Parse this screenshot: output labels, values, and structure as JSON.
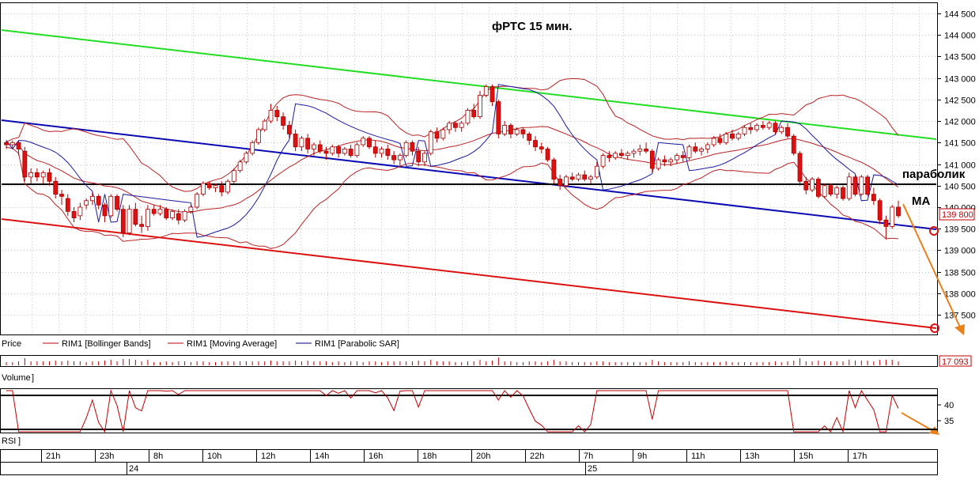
{
  "chart_data": {
    "type": "candlestick",
    "title": "фРТС  15 мин.",
    "annotations": {
      "parabolic_label": "параболик",
      "ma_label": "MA"
    },
    "price_axis": {
      "ylim": [
        137000,
        144700
      ],
      "ticks": [
        144500,
        144000,
        143500,
        143000,
        142500,
        142000,
        141500,
        141000,
        140500,
        140000,
        139500,
        139000,
        138500,
        138000,
        137500
      ],
      "tick_labels": [
        "144 500",
        "144 000",
        "143 500",
        "143 000",
        "142 500",
        "142 000",
        "141 500",
        "141 000",
        "140 500",
        "140 000",
        "139 500",
        "139 000",
        "138 500",
        "138 000",
        "137 500"
      ],
      "last_price": 139800,
      "last_price_label": "139 800"
    },
    "legend": [
      {
        "label": "Price",
        "color": "#000000"
      },
      {
        "label": "RIM1 [Bollinger Bands]",
        "color": "#c00000"
      },
      {
        "label": "RIM1 [Moving Average]",
        "color": "#c00000"
      },
      {
        "label": "RIM1 [Parabolic SAR]",
        "color": "#000080"
      }
    ],
    "time_axis": {
      "hours": [
        "21h",
        "23h",
        "8h",
        "10h",
        "12h",
        "14h",
        "16h",
        "18h",
        "20h",
        "22h",
        "7h",
        "9h",
        "11h",
        "13h",
        "15h",
        "17h"
      ],
      "dates": [
        "24",
        "25"
      ]
    },
    "volume": {
      "label": "Volume",
      "last_value": 17093,
      "last_value_label": "17 093"
    },
    "rsi": {
      "label": "RSI",
      "ticks": [
        40,
        35
      ],
      "tick_labels": [
        "40",
        "35"
      ]
    },
    "candles": [
      {
        "o": 141500,
        "h": 141550,
        "l": 141350,
        "c": 141450
      },
      {
        "o": 141450,
        "h": 141550,
        "l": 141350,
        "c": 141500
      },
      {
        "o": 141500,
        "h": 141550,
        "l": 141200,
        "c": 141350
      },
      {
        "o": 141300,
        "h": 141400,
        "l": 140600,
        "c": 140700
      },
      {
        "o": 140700,
        "h": 140900,
        "l": 140550,
        "c": 140800
      },
      {
        "o": 140800,
        "h": 140900,
        "l": 140600,
        "c": 140700
      },
      {
        "o": 140700,
        "h": 140850,
        "l": 140550,
        "c": 140800
      },
      {
        "o": 140800,
        "h": 140900,
        "l": 140500,
        "c": 140600
      },
      {
        "o": 140600,
        "h": 140700,
        "l": 140200,
        "c": 140300
      },
      {
        "o": 140300,
        "h": 140400,
        "l": 140050,
        "c": 140250
      },
      {
        "o": 140200,
        "h": 140300,
        "l": 139800,
        "c": 139900
      },
      {
        "o": 139900,
        "h": 140000,
        "l": 139650,
        "c": 139750
      },
      {
        "o": 139800,
        "h": 140100,
        "l": 139700,
        "c": 140000
      },
      {
        "o": 140050,
        "h": 140200,
        "l": 139950,
        "c": 140150
      },
      {
        "o": 140150,
        "h": 140350,
        "l": 140050,
        "c": 140250
      },
      {
        "o": 140250,
        "h": 140300,
        "l": 139950,
        "c": 140050
      },
      {
        "o": 140050,
        "h": 140100,
        "l": 139650,
        "c": 139800
      },
      {
        "o": 139800,
        "h": 140300,
        "l": 139750,
        "c": 140250
      },
      {
        "o": 140250,
        "h": 140300,
        "l": 139900,
        "c": 139950
      },
      {
        "o": 139950,
        "h": 140050,
        "l": 139300,
        "c": 139400
      },
      {
        "o": 139400,
        "h": 140050,
        "l": 139350,
        "c": 139950
      },
      {
        "o": 139950,
        "h": 140100,
        "l": 139550,
        "c": 139600
      },
      {
        "o": 139600,
        "h": 139800,
        "l": 139400,
        "c": 139550
      },
      {
        "o": 139550,
        "h": 140050,
        "l": 139450,
        "c": 139950
      },
      {
        "o": 139950,
        "h": 140050,
        "l": 139800,
        "c": 139850
      },
      {
        "o": 139850,
        "h": 140050,
        "l": 139800,
        "c": 139950
      },
      {
        "o": 139950,
        "h": 140000,
        "l": 139700,
        "c": 139750
      },
      {
        "o": 139750,
        "h": 139950,
        "l": 139700,
        "c": 139900
      },
      {
        "o": 139850,
        "h": 139950,
        "l": 139600,
        "c": 139700
      },
      {
        "o": 139700,
        "h": 139950,
        "l": 139650,
        "c": 139900
      },
      {
        "o": 139900,
        "h": 140050,
        "l": 139850,
        "c": 140000
      },
      {
        "o": 140000,
        "h": 140350,
        "l": 139950,
        "c": 140300
      },
      {
        "o": 140300,
        "h": 140600,
        "l": 140250,
        "c": 140550
      },
      {
        "o": 140550,
        "h": 140600,
        "l": 140400,
        "c": 140450
      },
      {
        "o": 140450,
        "h": 140550,
        "l": 140350,
        "c": 140500
      },
      {
        "o": 140500,
        "h": 140600,
        "l": 140250,
        "c": 140350
      },
      {
        "o": 140350,
        "h": 140650,
        "l": 140300,
        "c": 140600
      },
      {
        "o": 140600,
        "h": 140900,
        "l": 140550,
        "c": 140850
      },
      {
        "o": 140850,
        "h": 141100,
        "l": 140800,
        "c": 141050
      },
      {
        "o": 141050,
        "h": 141300,
        "l": 141000,
        "c": 141250
      },
      {
        "o": 141250,
        "h": 141550,
        "l": 141200,
        "c": 141500
      },
      {
        "o": 141500,
        "h": 141850,
        "l": 141450,
        "c": 141800
      },
      {
        "o": 141800,
        "h": 142050,
        "l": 141750,
        "c": 142000
      },
      {
        "o": 142000,
        "h": 142400,
        "l": 141950,
        "c": 142250
      },
      {
        "o": 142250,
        "h": 142350,
        "l": 142000,
        "c": 142100
      },
      {
        "o": 142100,
        "h": 142200,
        "l": 141800,
        "c": 141900
      },
      {
        "o": 141900,
        "h": 142000,
        "l": 141600,
        "c": 141700
      },
      {
        "o": 141700,
        "h": 141800,
        "l": 141300,
        "c": 141400
      },
      {
        "o": 141400,
        "h": 141650,
        "l": 141300,
        "c": 141600
      },
      {
        "o": 141600,
        "h": 141700,
        "l": 141250,
        "c": 141350
      },
      {
        "o": 141350,
        "h": 141500,
        "l": 141200,
        "c": 141450
      },
      {
        "o": 141450,
        "h": 141550,
        "l": 141250,
        "c": 141300
      },
      {
        "o": 141300,
        "h": 141400,
        "l": 141100,
        "c": 141250
      },
      {
        "o": 141250,
        "h": 141450,
        "l": 141200,
        "c": 141400
      },
      {
        "o": 141400,
        "h": 141450,
        "l": 141150,
        "c": 141250
      },
      {
        "o": 141250,
        "h": 141400,
        "l": 141200,
        "c": 141350
      },
      {
        "o": 141350,
        "h": 141450,
        "l": 141150,
        "c": 141200
      },
      {
        "o": 141200,
        "h": 141500,
        "l": 141150,
        "c": 141450
      },
      {
        "o": 141450,
        "h": 141650,
        "l": 141400,
        "c": 141600
      },
      {
        "o": 141600,
        "h": 141650,
        "l": 141350,
        "c": 141400
      },
      {
        "o": 141400,
        "h": 141550,
        "l": 141150,
        "c": 141250
      },
      {
        "o": 141250,
        "h": 141400,
        "l": 141150,
        "c": 141350
      },
      {
        "o": 141350,
        "h": 141450,
        "l": 141100,
        "c": 141200
      },
      {
        "o": 141200,
        "h": 141300,
        "l": 141000,
        "c": 141100
      },
      {
        "o": 141100,
        "h": 141250,
        "l": 140950,
        "c": 141200
      },
      {
        "o": 141200,
        "h": 141550,
        "l": 141150,
        "c": 141500
      },
      {
        "o": 141500,
        "h": 141550,
        "l": 141200,
        "c": 141300
      },
      {
        "o": 141300,
        "h": 141400,
        "l": 140950,
        "c": 141050
      },
      {
        "o": 141050,
        "h": 141300,
        "l": 140950,
        "c": 141250
      },
      {
        "o": 141250,
        "h": 141800,
        "l": 141200,
        "c": 141750
      },
      {
        "o": 141750,
        "h": 141850,
        "l": 141500,
        "c": 141600
      },
      {
        "o": 141600,
        "h": 141850,
        "l": 141550,
        "c": 141800
      },
      {
        "o": 141800,
        "h": 142000,
        "l": 141700,
        "c": 141950
      },
      {
        "o": 141950,
        "h": 142000,
        "l": 141750,
        "c": 141850
      },
      {
        "o": 141850,
        "h": 142000,
        "l": 141750,
        "c": 141950
      },
      {
        "o": 141950,
        "h": 142300,
        "l": 141900,
        "c": 142250
      },
      {
        "o": 142250,
        "h": 142400,
        "l": 142050,
        "c": 142100
      },
      {
        "o": 142100,
        "h": 142700,
        "l": 142050,
        "c": 142600
      },
      {
        "o": 142600,
        "h": 142850,
        "l": 142550,
        "c": 142800
      },
      {
        "o": 142800,
        "h": 142850,
        "l": 142350,
        "c": 142450
      },
      {
        "o": 142450,
        "h": 142500,
        "l": 141600,
        "c": 141700
      },
      {
        "o": 141700,
        "h": 142000,
        "l": 141650,
        "c": 141900
      },
      {
        "o": 141900,
        "h": 141950,
        "l": 141600,
        "c": 141700
      },
      {
        "o": 141700,
        "h": 141850,
        "l": 141650,
        "c": 141800
      },
      {
        "o": 141800,
        "h": 141850,
        "l": 141600,
        "c": 141700
      },
      {
        "o": 141700,
        "h": 141750,
        "l": 141450,
        "c": 141550
      },
      {
        "o": 141550,
        "h": 141650,
        "l": 141300,
        "c": 141400
      },
      {
        "o": 141400,
        "h": 141500,
        "l": 141250,
        "c": 141350
      },
      {
        "o": 141350,
        "h": 141400,
        "l": 141050,
        "c": 141100
      },
      {
        "o": 141100,
        "h": 141150,
        "l": 140550,
        "c": 140650
      },
      {
        "o": 140650,
        "h": 140750,
        "l": 140400,
        "c": 140500
      },
      {
        "o": 140500,
        "h": 140750,
        "l": 140450,
        "c": 140700
      },
      {
        "o": 140700,
        "h": 140800,
        "l": 140600,
        "c": 140650
      },
      {
        "o": 140650,
        "h": 140800,
        "l": 140600,
        "c": 140750
      },
      {
        "o": 140750,
        "h": 140850,
        "l": 140600,
        "c": 140650
      },
      {
        "o": 140650,
        "h": 140750,
        "l": 140550,
        "c": 140700
      },
      {
        "o": 140700,
        "h": 141050,
        "l": 140650,
        "c": 140950
      },
      {
        "o": 140950,
        "h": 141250,
        "l": 140900,
        "c": 141200
      },
      {
        "o": 141200,
        "h": 141300,
        "l": 141050,
        "c": 141150
      },
      {
        "o": 141150,
        "h": 141300,
        "l": 141100,
        "c": 141250
      },
      {
        "o": 141250,
        "h": 141350,
        "l": 141150,
        "c": 141200
      },
      {
        "o": 141200,
        "h": 141300,
        "l": 141100,
        "c": 141250
      },
      {
        "o": 141250,
        "h": 141350,
        "l": 141150,
        "c": 141300
      },
      {
        "o": 141300,
        "h": 141450,
        "l": 141200,
        "c": 141350
      },
      {
        "o": 141350,
        "h": 141500,
        "l": 141250,
        "c": 141300
      },
      {
        "o": 141300,
        "h": 141350,
        "l": 140800,
        "c": 140900
      },
      {
        "o": 140900,
        "h": 141150,
        "l": 140850,
        "c": 141100
      },
      {
        "o": 141100,
        "h": 141200,
        "l": 140950,
        "c": 141050
      },
      {
        "o": 141050,
        "h": 141150,
        "l": 140950,
        "c": 141100
      },
      {
        "o": 141100,
        "h": 141250,
        "l": 141000,
        "c": 141200
      },
      {
        "o": 141200,
        "h": 141300,
        "l": 141050,
        "c": 141150
      },
      {
        "o": 141150,
        "h": 141450,
        "l": 141100,
        "c": 141400
      },
      {
        "o": 141400,
        "h": 141500,
        "l": 141250,
        "c": 141300
      },
      {
        "o": 141300,
        "h": 141400,
        "l": 141200,
        "c": 141350
      },
      {
        "o": 141350,
        "h": 141500,
        "l": 141250,
        "c": 141450
      },
      {
        "o": 141450,
        "h": 141650,
        "l": 141400,
        "c": 141600
      },
      {
        "o": 141600,
        "h": 141700,
        "l": 141450,
        "c": 141500
      },
      {
        "o": 141500,
        "h": 141750,
        "l": 141450,
        "c": 141700
      },
      {
        "o": 141700,
        "h": 141800,
        "l": 141550,
        "c": 141600
      },
      {
        "o": 141600,
        "h": 141750,
        "l": 141550,
        "c": 141700
      },
      {
        "o": 141700,
        "h": 141900,
        "l": 141650,
        "c": 141850
      },
      {
        "o": 141850,
        "h": 141950,
        "l": 141700,
        "c": 141800
      },
      {
        "o": 141800,
        "h": 141950,
        "l": 141750,
        "c": 141900
      },
      {
        "o": 141900,
        "h": 142000,
        "l": 141800,
        "c": 141850
      },
      {
        "o": 141850,
        "h": 142000,
        "l": 141800,
        "c": 141950
      },
      {
        "o": 141950,
        "h": 142000,
        "l": 141700,
        "c": 141750
      },
      {
        "o": 141750,
        "h": 141900,
        "l": 141700,
        "c": 141850
      },
      {
        "o": 141850,
        "h": 141950,
        "l": 141600,
        "c": 141650
      },
      {
        "o": 141650,
        "h": 141700,
        "l": 141200,
        "c": 141250
      },
      {
        "o": 141250,
        "h": 141300,
        "l": 140500,
        "c": 140600
      },
      {
        "o": 140600,
        "h": 140700,
        "l": 140300,
        "c": 140400
      },
      {
        "o": 140400,
        "h": 140700,
        "l": 140350,
        "c": 140650
      },
      {
        "o": 140650,
        "h": 140700,
        "l": 140200,
        "c": 140250
      },
      {
        "o": 140250,
        "h": 140550,
        "l": 140200,
        "c": 140500
      },
      {
        "o": 140500,
        "h": 140550,
        "l": 140250,
        "c": 140300
      },
      {
        "o": 140300,
        "h": 140500,
        "l": 140200,
        "c": 140450
      },
      {
        "o": 140450,
        "h": 140500,
        "l": 140150,
        "c": 140200
      },
      {
        "o": 140200,
        "h": 140800,
        "l": 140150,
        "c": 140700
      },
      {
        "o": 140700,
        "h": 140750,
        "l": 140250,
        "c": 140300
      },
      {
        "o": 140300,
        "h": 140750,
        "l": 140250,
        "c": 140700
      },
      {
        "o": 140700,
        "h": 140750,
        "l": 140250,
        "c": 140300
      },
      {
        "o": 140300,
        "h": 140450,
        "l": 140050,
        "c": 140150
      },
      {
        "o": 140150,
        "h": 140200,
        "l": 139600,
        "c": 139700
      },
      {
        "o": 139700,
        "h": 139800,
        "l": 139250,
        "c": 139550
      },
      {
        "o": 139550,
        "h": 140050,
        "l": 139500,
        "c": 140000
      },
      {
        "o": 140000,
        "h": 140150,
        "l": 139750,
        "c": 139800
      }
    ]
  }
}
